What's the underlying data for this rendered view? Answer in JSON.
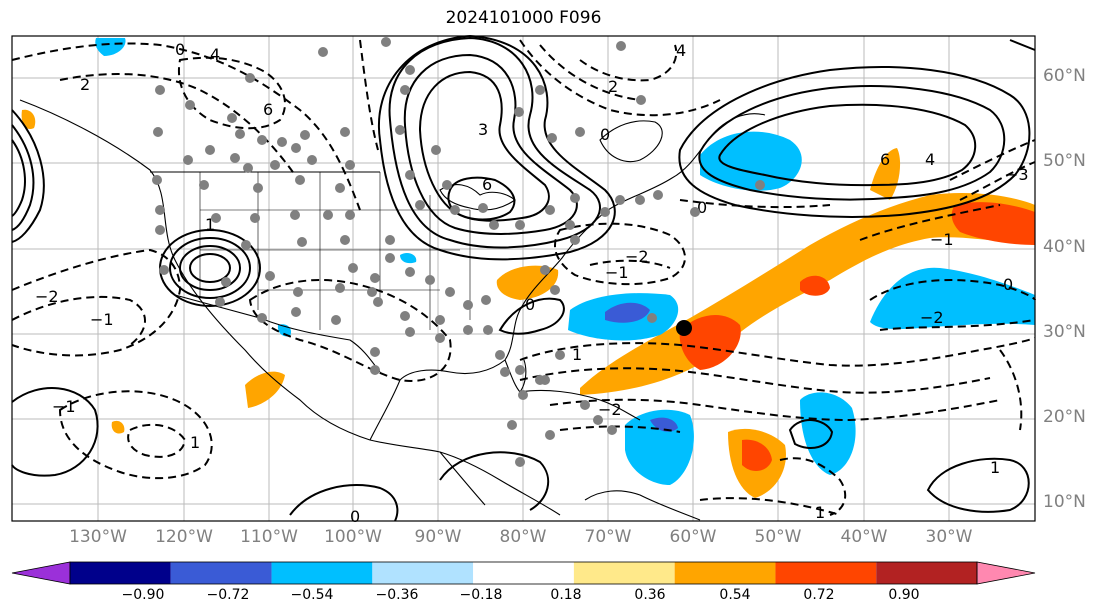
{
  "title": "2024101000 F096",
  "lat_labels": [
    "60°N",
    "50°N",
    "40°N",
    "30°N",
    "20°N",
    "10°N"
  ],
  "lon_labels": [
    "130°W",
    "120°W",
    "110°W",
    "100°W",
    "90°W",
    "80°W",
    "70°W",
    "60°W",
    "50°W",
    "40°W",
    "30°W"
  ],
  "colorbar": {
    "ticks": [
      "−0.90",
      "−0.72",
      "−0.54",
      "−0.36",
      "−0.18",
      "0.18",
      "0.36",
      "0.54",
      "0.72",
      "0.90"
    ],
    "colors": [
      "#9b30d9",
      "#00008b",
      "#3a5bd6",
      "#00bfff",
      "#b0e2ff",
      "#ffffff",
      "#ffe98a",
      "#ffa500",
      "#ff4500",
      "#b22222",
      "#ff88b0"
    ]
  },
  "contour_labels": [
    "0",
    "2",
    "4",
    "6",
    "−1",
    "−2",
    "1",
    "3",
    "6",
    "4",
    "2",
    "0",
    "−1",
    "−2",
    "1",
    "0",
    "−2",
    "0",
    "6",
    "4",
    "−3",
    "−1",
    "1",
    "1",
    "0",
    "−2",
    "1",
    "−1",
    "0"
  ],
  "colors": {
    "positive": "#ffa500",
    "strong_positive": "#ff4500",
    "negative": "#00bfff",
    "strong_negative": "#3a5bd6",
    "station": "#808080",
    "marker": "#000000"
  }
}
